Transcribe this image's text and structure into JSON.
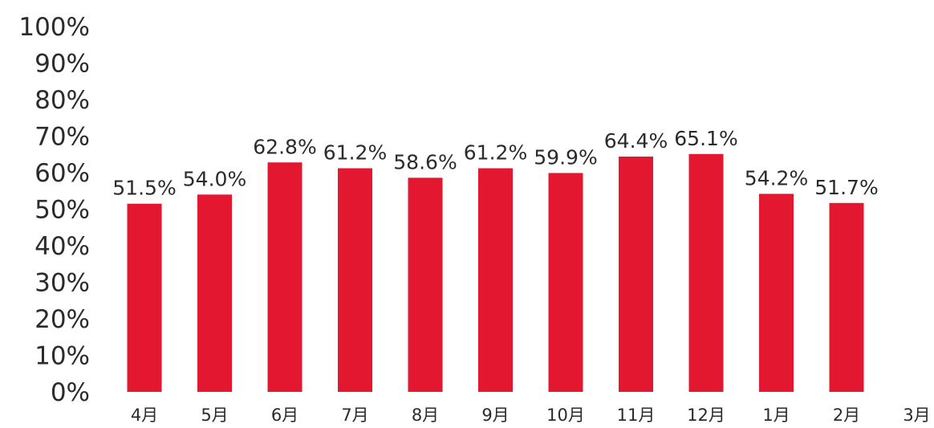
{
  "chart_data": {
    "type": "bar",
    "categories": [
      "4月",
      "5月",
      "6月",
      "7月",
      "8月",
      "9月",
      "10月",
      "11月",
      "12月",
      "1月",
      "2月",
      "3月"
    ],
    "values": [
      51.5,
      54.0,
      62.8,
      61.2,
      58.6,
      61.2,
      59.9,
      64.4,
      65.1,
      54.2,
      51.7,
      null
    ],
    "data_labels": [
      "51.5%",
      "54.0%",
      "62.8%",
      "61.2%",
      "58.6%",
      "61.2%",
      "59.9%",
      "64.4%",
      "65.1%",
      "54.2%",
      "51.7%",
      ""
    ],
    "y_ticks": [
      "0%",
      "10%",
      "20%",
      "30%",
      "40%",
      "50%",
      "60%",
      "70%",
      "80%",
      "90%",
      "100%"
    ],
    "ylim": [
      0,
      100
    ],
    "bar_color": "#e3172f",
    "grid": false,
    "legend": false
  }
}
